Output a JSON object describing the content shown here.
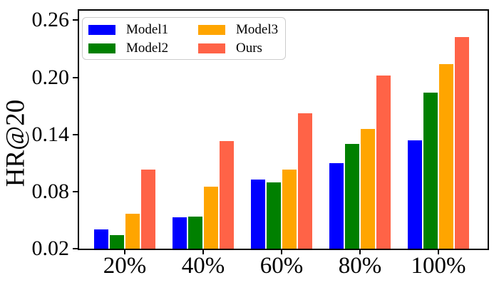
{
  "chart_data": {
    "type": "bar",
    "title": "",
    "ylabel": "HR@20",
    "xlabel": "",
    "categories": [
      "20%",
      "40%",
      "60%",
      "80%",
      "100%"
    ],
    "series": [
      {
        "name": "Model1",
        "color": "#0000FF",
        "values": [
          0.04,
          0.053,
          0.093,
          0.11,
          0.134
        ]
      },
      {
        "name": "Model2",
        "color": "#008000",
        "values": [
          0.034,
          0.054,
          0.09,
          0.13,
          0.184
        ]
      },
      {
        "name": "Model3",
        "color": "#FFA500",
        "values": [
          0.057,
          0.085,
          0.103,
          0.146,
          0.214
        ]
      },
      {
        "name": "Ours",
        "color": "#FF6347",
        "values": [
          0.103,
          0.133,
          0.162,
          0.202,
          0.242
        ]
      }
    ],
    "yticks": [
      0.02,
      0.08,
      0.14,
      0.2,
      0.26
    ],
    "ytick_labels": [
      "0.02",
      "0.08",
      "0.14",
      "0.20",
      "0.26"
    ],
    "ylim": [
      0.02,
      0.27
    ],
    "grid": false,
    "legend_position": "upper left",
    "legend_columns": 2,
    "axis_color": "#000000",
    "background_color": "#ffffff"
  }
}
